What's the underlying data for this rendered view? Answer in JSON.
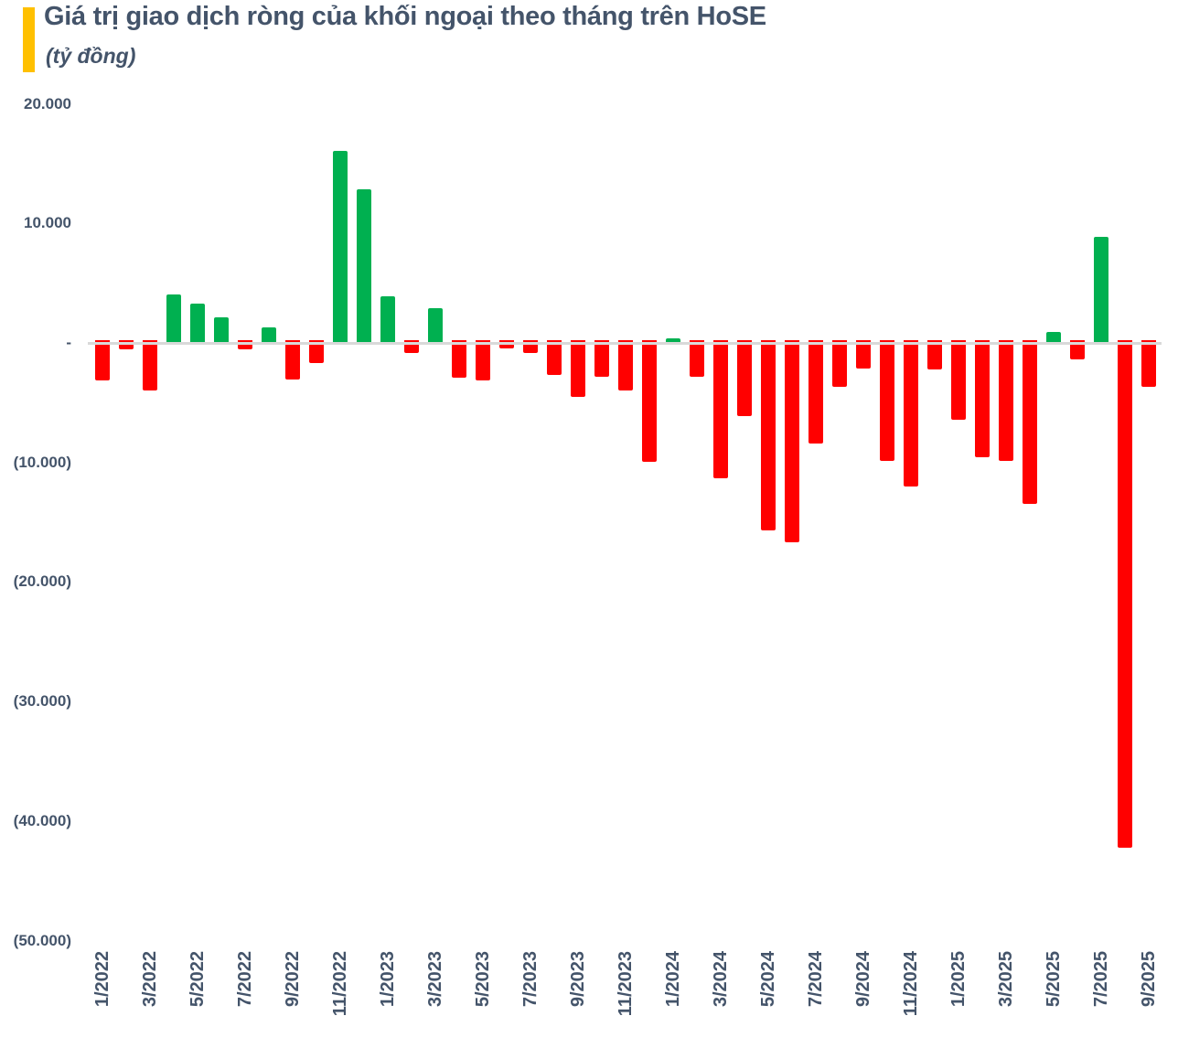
{
  "header": {
    "title": "Giá trị giao dịch ròng của khối ngoại theo tháng trên HoSE",
    "subtitle": "(tỷ đồng)",
    "accent_color": "#FFC000",
    "text_color": "#44546A"
  },
  "chart_data": {
    "type": "bar",
    "title": "Giá trị giao dịch ròng của khối ngoại theo tháng trên HoSE",
    "unit": "tỷ đồng",
    "grid": false,
    "legend": false,
    "ylim": [
      -50000,
      20000
    ],
    "positive_color": "#00B050",
    "negative_color": "#FF0000",
    "axis_text_color": "#44546A",
    "zero_line_color": "#D9D9D9",
    "y_tick_values": [
      20000,
      10000,
      0,
      -10000,
      -20000,
      -30000,
      -40000,
      -50000
    ],
    "y_tick_labels": [
      "20.000",
      "10.000",
      "-",
      "(10.000)",
      "(20.000)",
      "(30.000)",
      "(40.000)",
      "(50.000)"
    ],
    "x_tick_labels": [
      "1/2022",
      "3/2022",
      "5/2022",
      "7/2022",
      "9/2022",
      "11/2022",
      "1/2023",
      "3/2023",
      "5/2023",
      "7/2023",
      "9/2023",
      "11/2023",
      "1/2024",
      "3/2024",
      "5/2024",
      "7/2024",
      "9/2024",
      "11/2024",
      "1/2025",
      "3/2025",
      "5/2025",
      "7/2025",
      "9/2025"
    ],
    "categories": [
      "1/2022",
      "2/2022",
      "3/2022",
      "4/2022",
      "5/2022",
      "6/2022",
      "7/2022",
      "8/2022",
      "9/2022",
      "10/2022",
      "11/2022",
      "12/2022",
      "1/2023",
      "2/2023",
      "3/2023",
      "4/2023",
      "5/2023",
      "6/2023",
      "7/2023",
      "8/2023",
      "9/2023",
      "10/2023",
      "11/2023",
      "12/2023",
      "1/2024",
      "2/2024",
      "3/2024",
      "4/2024",
      "5/2024",
      "6/2024",
      "7/2024",
      "8/2024",
      "9/2024",
      "10/2024",
      "11/2024",
      "12/2024",
      "1/2025",
      "2/2025",
      "3/2025",
      "4/2025",
      "5/2025",
      "6/2025",
      "7/2025",
      "8/2025",
      "9/2025"
    ],
    "values": [
      -3100,
      -500,
      -3950,
      4050,
      3300,
      2150,
      -500,
      1300,
      -3050,
      -1650,
      16050,
      12850,
      3900,
      -850,
      2900,
      -2900,
      -3100,
      -450,
      -850,
      -2700,
      -4500,
      -2800,
      -3950,
      -9950,
      400,
      -2800,
      -11300,
      -6100,
      -15650,
      -16650,
      -8450,
      -3650,
      -2150,
      -9900,
      -12050,
      -2250,
      -6450,
      -9600,
      -9900,
      -13500,
      950,
      -1400,
      8850,
      -42200,
      -3700
    ]
  }
}
